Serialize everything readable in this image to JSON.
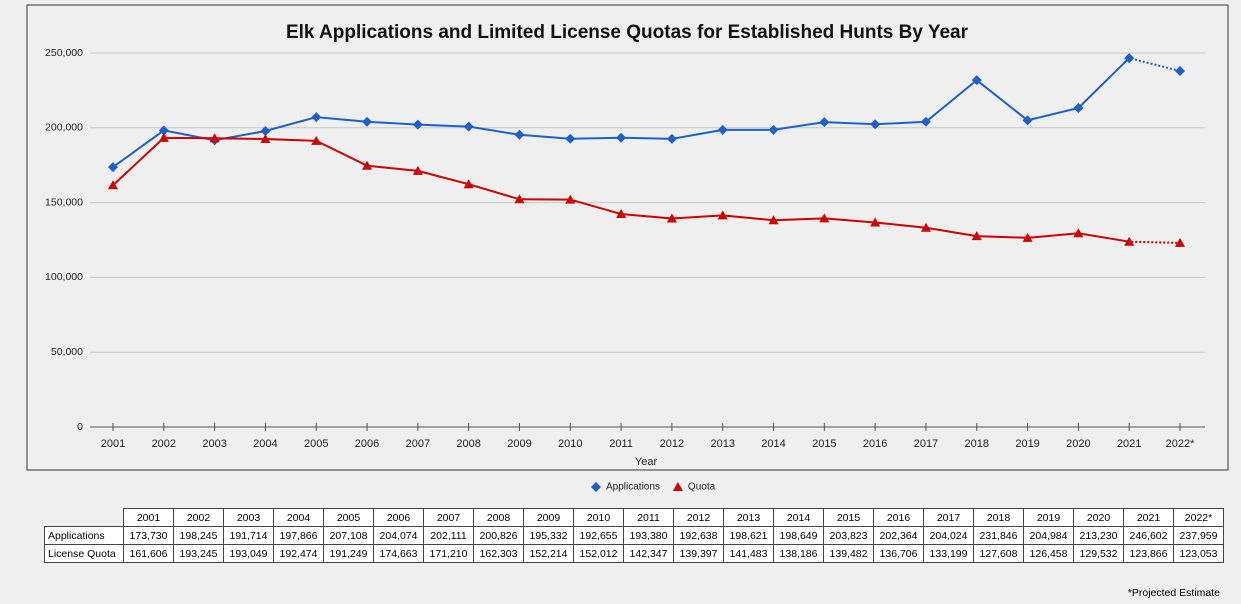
{
  "chart_data": {
    "type": "line",
    "title": "Elk Applications and Limited License Quotas for Established Hunts By Year",
    "x_label": "Year",
    "categories": [
      "2001",
      "2002",
      "2003",
      "2004",
      "2005",
      "2006",
      "2007",
      "2008",
      "2009",
      "2010",
      "2011",
      "2012",
      "2013",
      "2014",
      "2015",
      "2016",
      "2017",
      "2018",
      "2019",
      "2020",
      "2021",
      "2022*"
    ],
    "series": [
      {
        "name": "Applications",
        "color": "#1f5fc8",
        "marker": "diamond",
        "values": [
          173730,
          198245,
          191714,
          197866,
          207108,
          204074,
          202111,
          200826,
          195332,
          192655,
          193380,
          192638,
          198621,
          198649,
          203823,
          202364,
          204024,
          231846,
          204984,
          213230,
          246602,
          237959
        ]
      },
      {
        "name": "Quota",
        "color": "#cc0000",
        "marker": "triangle",
        "values": [
          161606,
          193245,
          193049,
          192474,
          191249,
          174663,
          171210,
          162303,
          152214,
          152012,
          142347,
          139397,
          141483,
          138186,
          139482,
          136706,
          133199,
          127608,
          126458,
          129532,
          123866,
          123053
        ]
      }
    ],
    "last_segment_style": "dotted",
    "ylim": [
      0,
      250000
    ],
    "yticks": [
      0,
      {
        "value": 50000,
        "label": "50,000"
      },
      {
        "value": 100000,
        "label": "100,000"
      },
      {
        "value": 150000,
        "label": "150,000"
      },
      {
        "value": 200000,
        "label": "200,000"
      },
      {
        "value": 250000,
        "label": "250,000"
      }
    ],
    "grid": true,
    "legend": "bottom"
  },
  "table": {
    "columns": [
      "2001",
      "2002",
      "2003",
      "2004",
      "2005",
      "2006",
      "2007",
      "2008",
      "2009",
      "2010",
      "2011",
      "2012",
      "2013",
      "2014",
      "2015",
      "2016",
      "2017",
      "2018",
      "2019",
      "2020",
      "2021",
      "2022*"
    ],
    "rows": [
      {
        "label": "Applications",
        "cells": [
          "173,730",
          "198,245",
          "191,714",
          "197,866",
          "207,108",
          "204,074",
          "202,111",
          "200,826",
          "195,332",
          "192,655",
          "193,380",
          "192,638",
          "198,621",
          "198,649",
          "203,823",
          "202,364",
          "204,024",
          "231,846",
          "204,984",
          "213,230",
          "246,602",
          "237,959"
        ]
      },
      {
        "label": "License Quota",
        "cells": [
          "161,606",
          "193,245",
          "193,049",
          "192,474",
          "191,249",
          "174,663",
          "171,210",
          "162,303",
          "152,214",
          "152,012",
          "142,347",
          "139,397",
          "141,483",
          "138,186",
          "139,482",
          "136,706",
          "133,199",
          "127,608",
          "126,458",
          "129,532",
          "123,866",
          "123,053"
        ]
      }
    ]
  },
  "footnote": "*Projected Estimate"
}
